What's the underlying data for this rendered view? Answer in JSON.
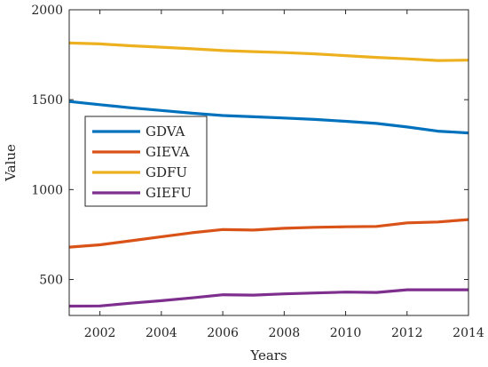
{
  "chart_data": {
    "type": "line",
    "xlabel": "Years",
    "ylabel": "Value",
    "xlim": [
      2001,
      2014
    ],
    "ylim": [
      300,
      2000
    ],
    "xticks": [
      2002,
      2004,
      2006,
      2008,
      2010,
      2012,
      2014
    ],
    "yticks": [
      500,
      1000,
      1500,
      2000
    ],
    "grid": false,
    "legend_position": "left",
    "x": [
      2001,
      2002,
      2003,
      2004,
      2005,
      2006,
      2007,
      2008,
      2009,
      2010,
      2011,
      2012,
      2013,
      2014
    ],
    "series": [
      {
        "name": "GDVA",
        "color": "#0072BD",
        "values": [
          1490,
          1472,
          1455,
          1440,
          1425,
          1412,
          1405,
          1398,
          1390,
          1380,
          1368,
          1348,
          1325,
          1315
        ]
      },
      {
        "name": "GIEVA",
        "color": "#D95319",
        "values": [
          680,
          693,
          715,
          738,
          760,
          778,
          775,
          785,
          790,
          793,
          795,
          815,
          820,
          833
        ]
      },
      {
        "name": "GDFU",
        "color": "#EDB120",
        "values": [
          1815,
          1810,
          1800,
          1792,
          1783,
          1773,
          1767,
          1762,
          1755,
          1745,
          1735,
          1727,
          1718,
          1720
        ]
      },
      {
        "name": "GIEFU",
        "color": "#7E2F8E",
        "values": [
          352,
          353,
          368,
          382,
          398,
          415,
          413,
          420,
          425,
          430,
          428,
          443,
          443,
          443
        ]
      }
    ]
  }
}
